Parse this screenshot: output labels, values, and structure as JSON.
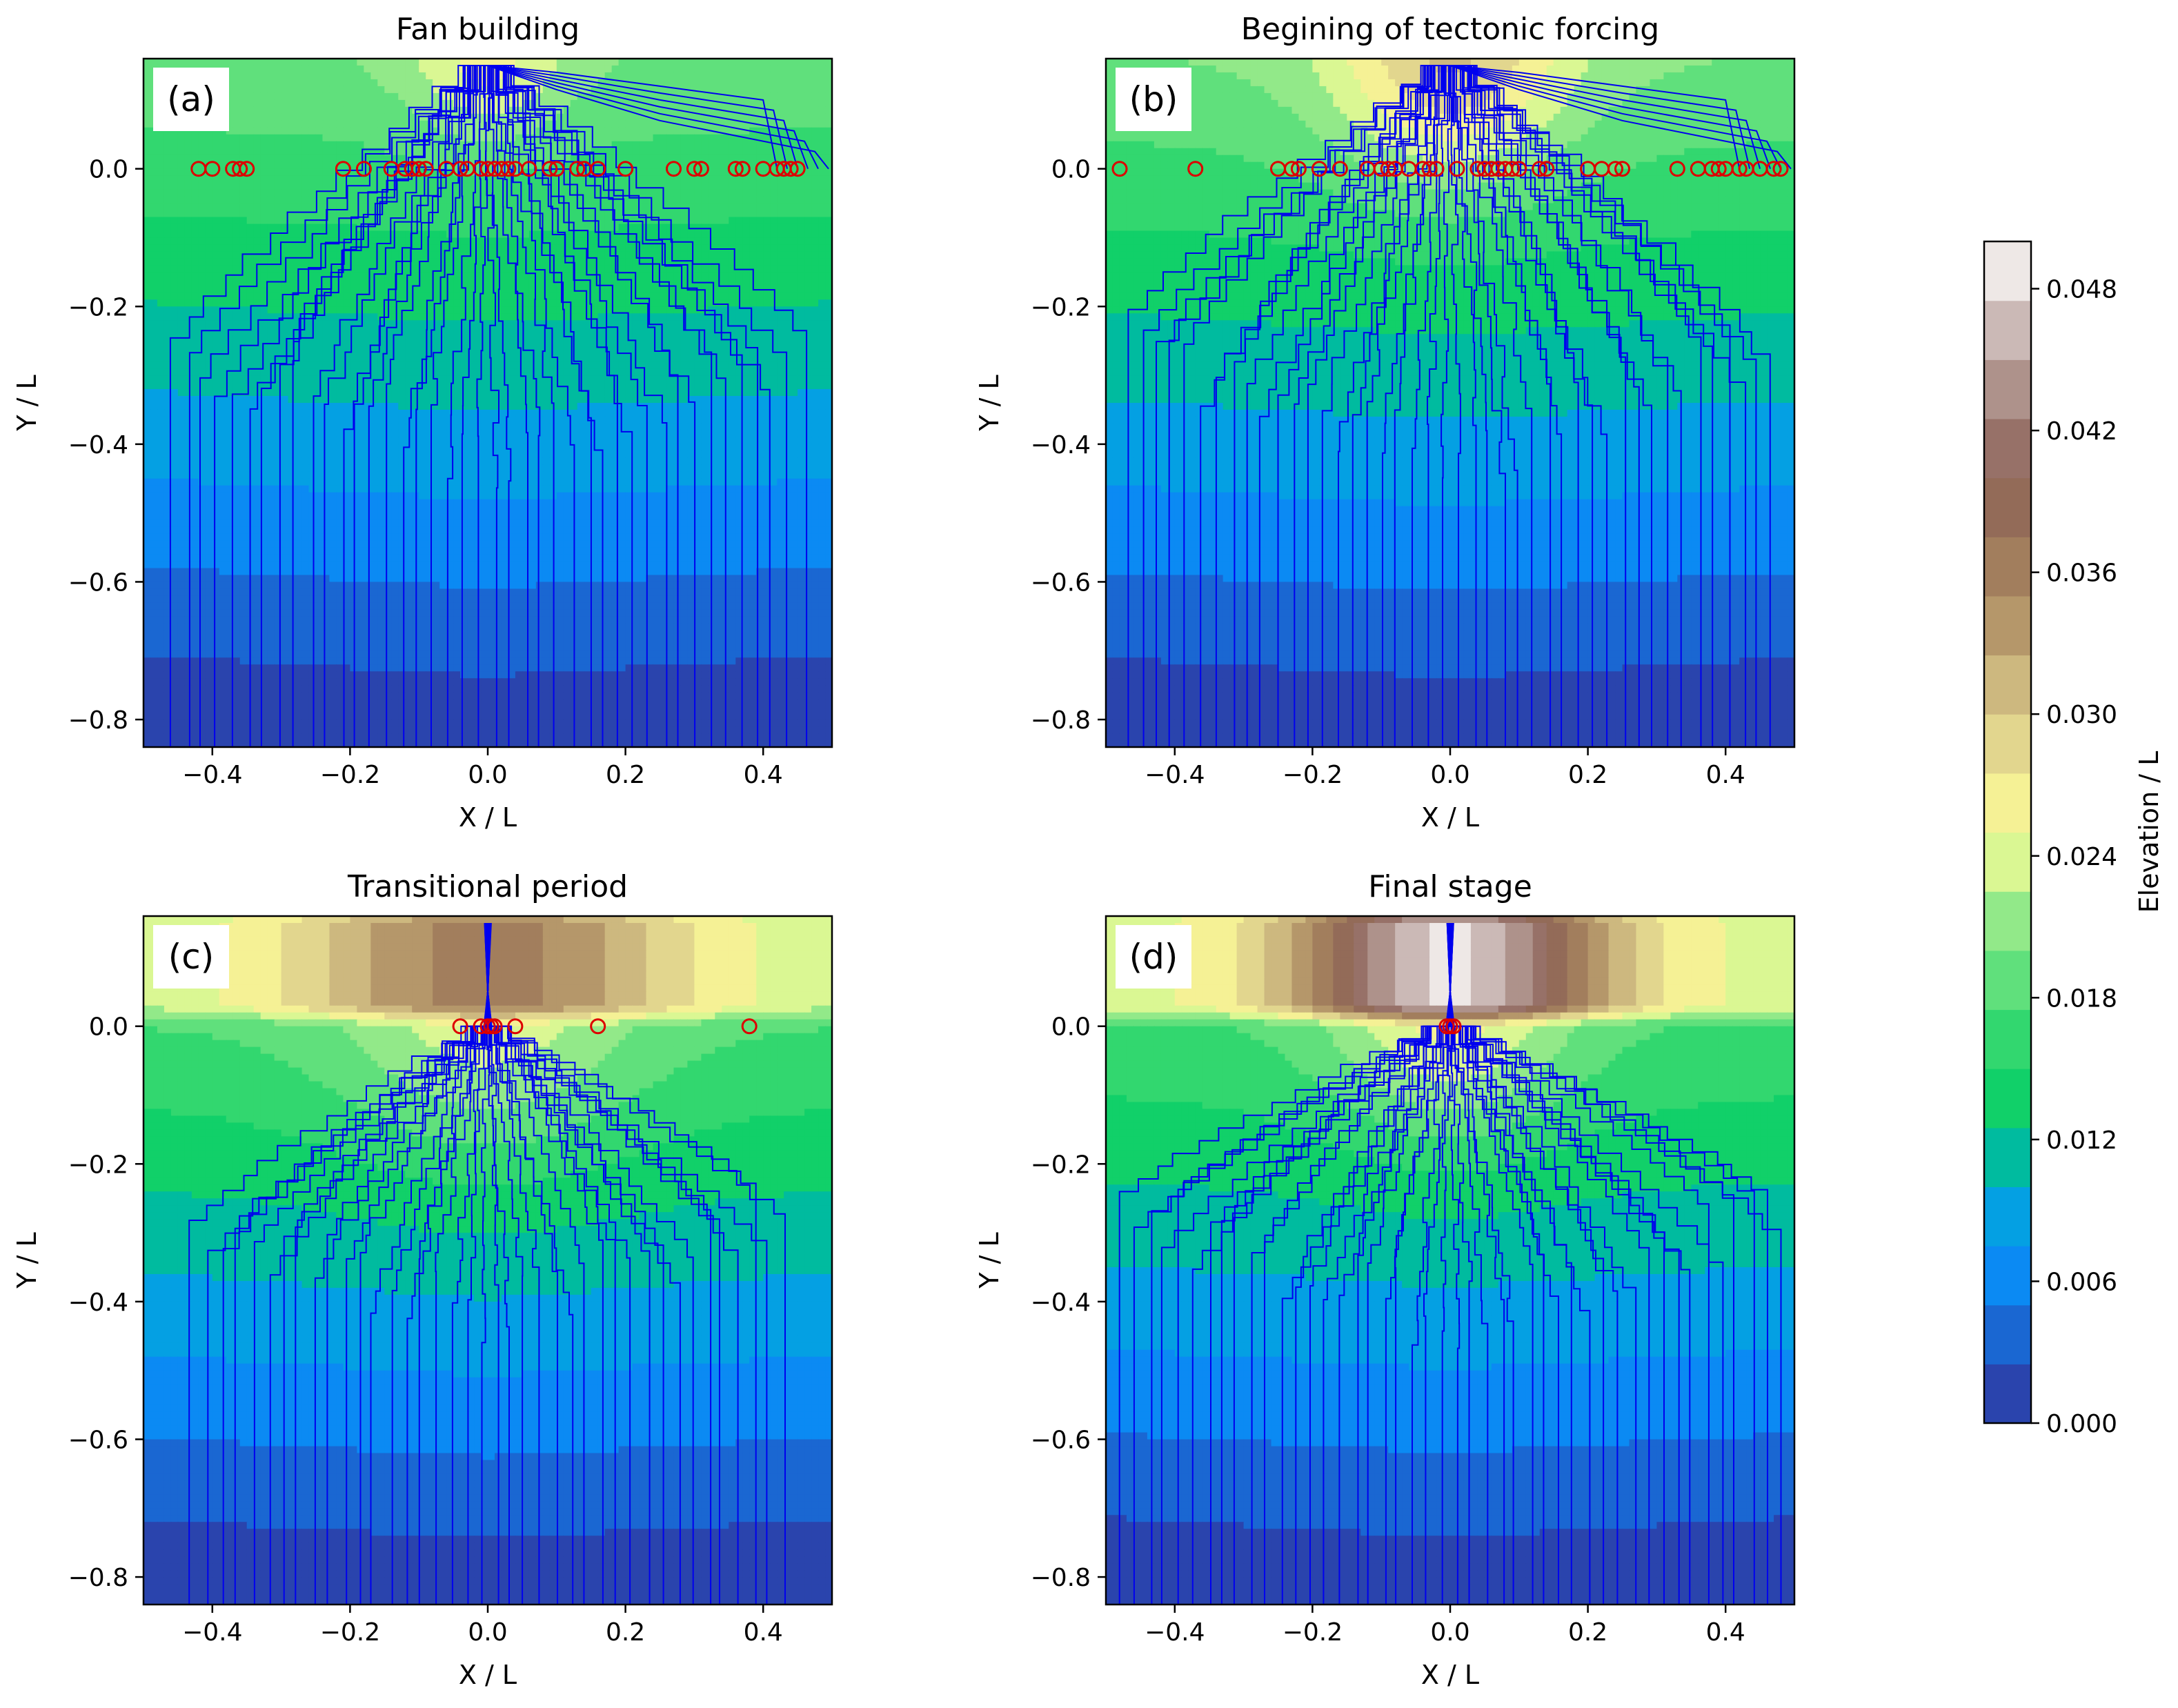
{
  "colormap": {
    "stops": [
      {
        "t": 0.0,
        "color": "#333399"
      },
      {
        "t": 0.06,
        "color": "#1e5cc8"
      },
      {
        "t": 0.13,
        "color": "#0a8df6"
      },
      {
        "t": 0.2,
        "color": "#00aad8"
      },
      {
        "t": 0.25,
        "color": "#00cc66"
      },
      {
        "t": 0.33,
        "color": "#35d870"
      },
      {
        "t": 0.42,
        "color": "#8be888"
      },
      {
        "t": 0.5,
        "color": "#fefe98"
      },
      {
        "t": 0.6,
        "color": "#d9c98a"
      },
      {
        "t": 0.7,
        "color": "#a9875f"
      },
      {
        "t": 0.8,
        "color": "#8b6156"
      },
      {
        "t": 0.9,
        "color": "#baa29d"
      },
      {
        "t": 1.0,
        "color": "#ffffff"
      }
    ],
    "stream_color": "#0000ee",
    "marker_color": "#dd0000"
  },
  "colorbar": {
    "label": "Elevation / L",
    "min": 0.0,
    "max": 0.05,
    "levels": 20,
    "ticks": [
      "0.000",
      "0.006",
      "0.012",
      "0.018",
      "0.024",
      "0.030",
      "0.036",
      "0.042",
      "0.048"
    ]
  },
  "panels": [
    {
      "id": "a",
      "label": "(a)",
      "title": "Fan building",
      "xlabel": "X / L",
      "ylabel": "Y / L",
      "xticks": [
        "−0.4",
        "−0.2",
        "0.0",
        "0.2",
        "0.4"
      ],
      "yticks": [
        "0.0",
        "−0.2",
        "−0.4",
        "−0.6",
        "−0.8"
      ]
    },
    {
      "id": "b",
      "label": "(b)",
      "title": "Begining of tectonic forcing",
      "xlabel": "X / L",
      "ylabel": "Y / L",
      "xticks": [
        "−0.4",
        "−0.2",
        "0.0",
        "0.2",
        "0.4"
      ],
      "yticks": [
        "0.0",
        "−0.2",
        "−0.4",
        "−0.6",
        "−0.8"
      ]
    },
    {
      "id": "c",
      "label": "(c)",
      "title": "Transitional period",
      "xlabel": "X / L",
      "ylabel": "Y / L",
      "xticks": [
        "−0.4",
        "−0.2",
        "0.0",
        "0.2",
        "0.4"
      ],
      "yticks": [
        "0.0",
        "−0.2",
        "−0.4",
        "−0.6",
        "−0.8"
      ]
    },
    {
      "id": "d",
      "label": "(d)",
      "title": "Final stage",
      "xlabel": "X / L",
      "ylabel": "Y / L",
      "xticks": [
        "−0.4",
        "−0.2",
        "0.0",
        "0.2",
        "0.4"
      ],
      "yticks": [
        "0.0",
        "−0.2",
        "−0.4",
        "−0.6",
        "−0.8"
      ]
    }
  ],
  "chart_data": [
    {
      "type": "contour",
      "panel": "a",
      "title": "Fan building",
      "xlabel": "X / L",
      "ylabel": "Y / L",
      "xlim": [
        -0.5,
        0.5
      ],
      "ylim": [
        -0.84,
        0.16
      ],
      "field": {
        "base": 0.0005,
        "yscale": 0.0195,
        "apex": [
          0.0,
          0.15
        ],
        "apex_amp": 0.006,
        "apex_width": 0.08,
        "upstream_peak": 0.0,
        "upstream_width": 0.2,
        "plateau": 0.0
      },
      "streams": {
        "count": 42,
        "outlet_y": 0.0,
        "apex": [
          0.0,
          0.15
        ],
        "spread": 0.47,
        "mode": "upstream_fan"
      },
      "outlets_x": [
        -0.42,
        -0.4,
        -0.37,
        -0.36,
        -0.35,
        -0.21,
        -0.18,
        -0.14,
        -0.12,
        -0.11,
        -0.1,
        -0.09,
        -0.06,
        -0.04,
        -0.03,
        -0.01,
        0.0,
        0.01,
        0.02,
        0.03,
        0.04,
        0.06,
        0.09,
        0.1,
        0.13,
        0.14,
        0.16,
        0.2,
        0.27,
        0.3,
        0.31,
        0.36,
        0.37,
        0.4,
        0.42,
        0.43,
        0.44,
        0.45
      ]
    },
    {
      "type": "contour",
      "panel": "b",
      "title": "Begining of tectonic forcing",
      "xlabel": "X / L",
      "ylabel": "Y / L",
      "xlim": [
        -0.5,
        0.5
      ],
      "ylim": [
        -0.84,
        0.16
      ],
      "field": {
        "base": 0.0005,
        "yscale": 0.02,
        "apex": [
          0.0,
          0.15
        ],
        "apex_amp": 0.01,
        "apex_width": 0.12,
        "upstream_peak": 0.0,
        "upstream_width": 0.2,
        "plateau": 0.0
      },
      "streams": {
        "count": 44,
        "outlet_y": 0.0,
        "apex": [
          0.0,
          0.15
        ],
        "spread": 0.48,
        "mode": "upstream_fan"
      },
      "outlets_x": [
        -0.48,
        -0.37,
        -0.25,
        -0.23,
        -0.22,
        -0.19,
        -0.16,
        -0.12,
        -0.1,
        -0.09,
        -0.08,
        -0.06,
        -0.04,
        -0.03,
        -0.02,
        0.01,
        0.04,
        0.05,
        0.06,
        0.07,
        0.08,
        0.09,
        0.1,
        0.13,
        0.14,
        0.2,
        0.22,
        0.24,
        0.25,
        0.33,
        0.36,
        0.38,
        0.39,
        0.4,
        0.42,
        0.43,
        0.45,
        0.47,
        0.48
      ]
    },
    {
      "type": "contour",
      "panel": "c",
      "title": "Transitional period",
      "xlabel": "X / L",
      "ylabel": "Y / L",
      "xlim": [
        -0.5,
        0.5
      ],
      "ylim": [
        -0.84,
        0.16
      ],
      "field": {
        "base": 0.0005,
        "yscale": 0.021,
        "apex": [
          0.0,
          0.0
        ],
        "apex_amp": 0.006,
        "apex_width": 0.15,
        "upstream_peak": 0.036,
        "upstream_width": 0.22,
        "plateau": 0.022
      },
      "streams": {
        "count": 40,
        "outlet_y": 0.0,
        "apex": [
          0.0,
          0.0
        ],
        "spread": 0.44,
        "mode": "downstream_fan"
      },
      "outlets_x": [
        -0.04,
        -0.01,
        0.0,
        0.005,
        0.01,
        0.04,
        0.16,
        0.38
      ]
    },
    {
      "type": "contour",
      "panel": "d",
      "title": "Final stage",
      "xlabel": "X / L",
      "ylabel": "Y / L",
      "xlim": [
        -0.5,
        0.5
      ],
      "ylim": [
        -0.84,
        0.16
      ],
      "field": {
        "base": 0.0005,
        "yscale": 0.0205,
        "apex": [
          0.0,
          0.0
        ],
        "apex_amp": 0.008,
        "apex_width": 0.12,
        "upstream_peak": 0.048,
        "upstream_width": 0.16,
        "plateau": 0.024
      },
      "streams": {
        "count": 46,
        "outlet_y": 0.0,
        "apex": [
          0.0,
          0.0
        ],
        "spread": 0.49,
        "mode": "downstream_fan"
      },
      "outlets_x": [
        -0.005,
        0.0,
        0.005
      ]
    }
  ]
}
